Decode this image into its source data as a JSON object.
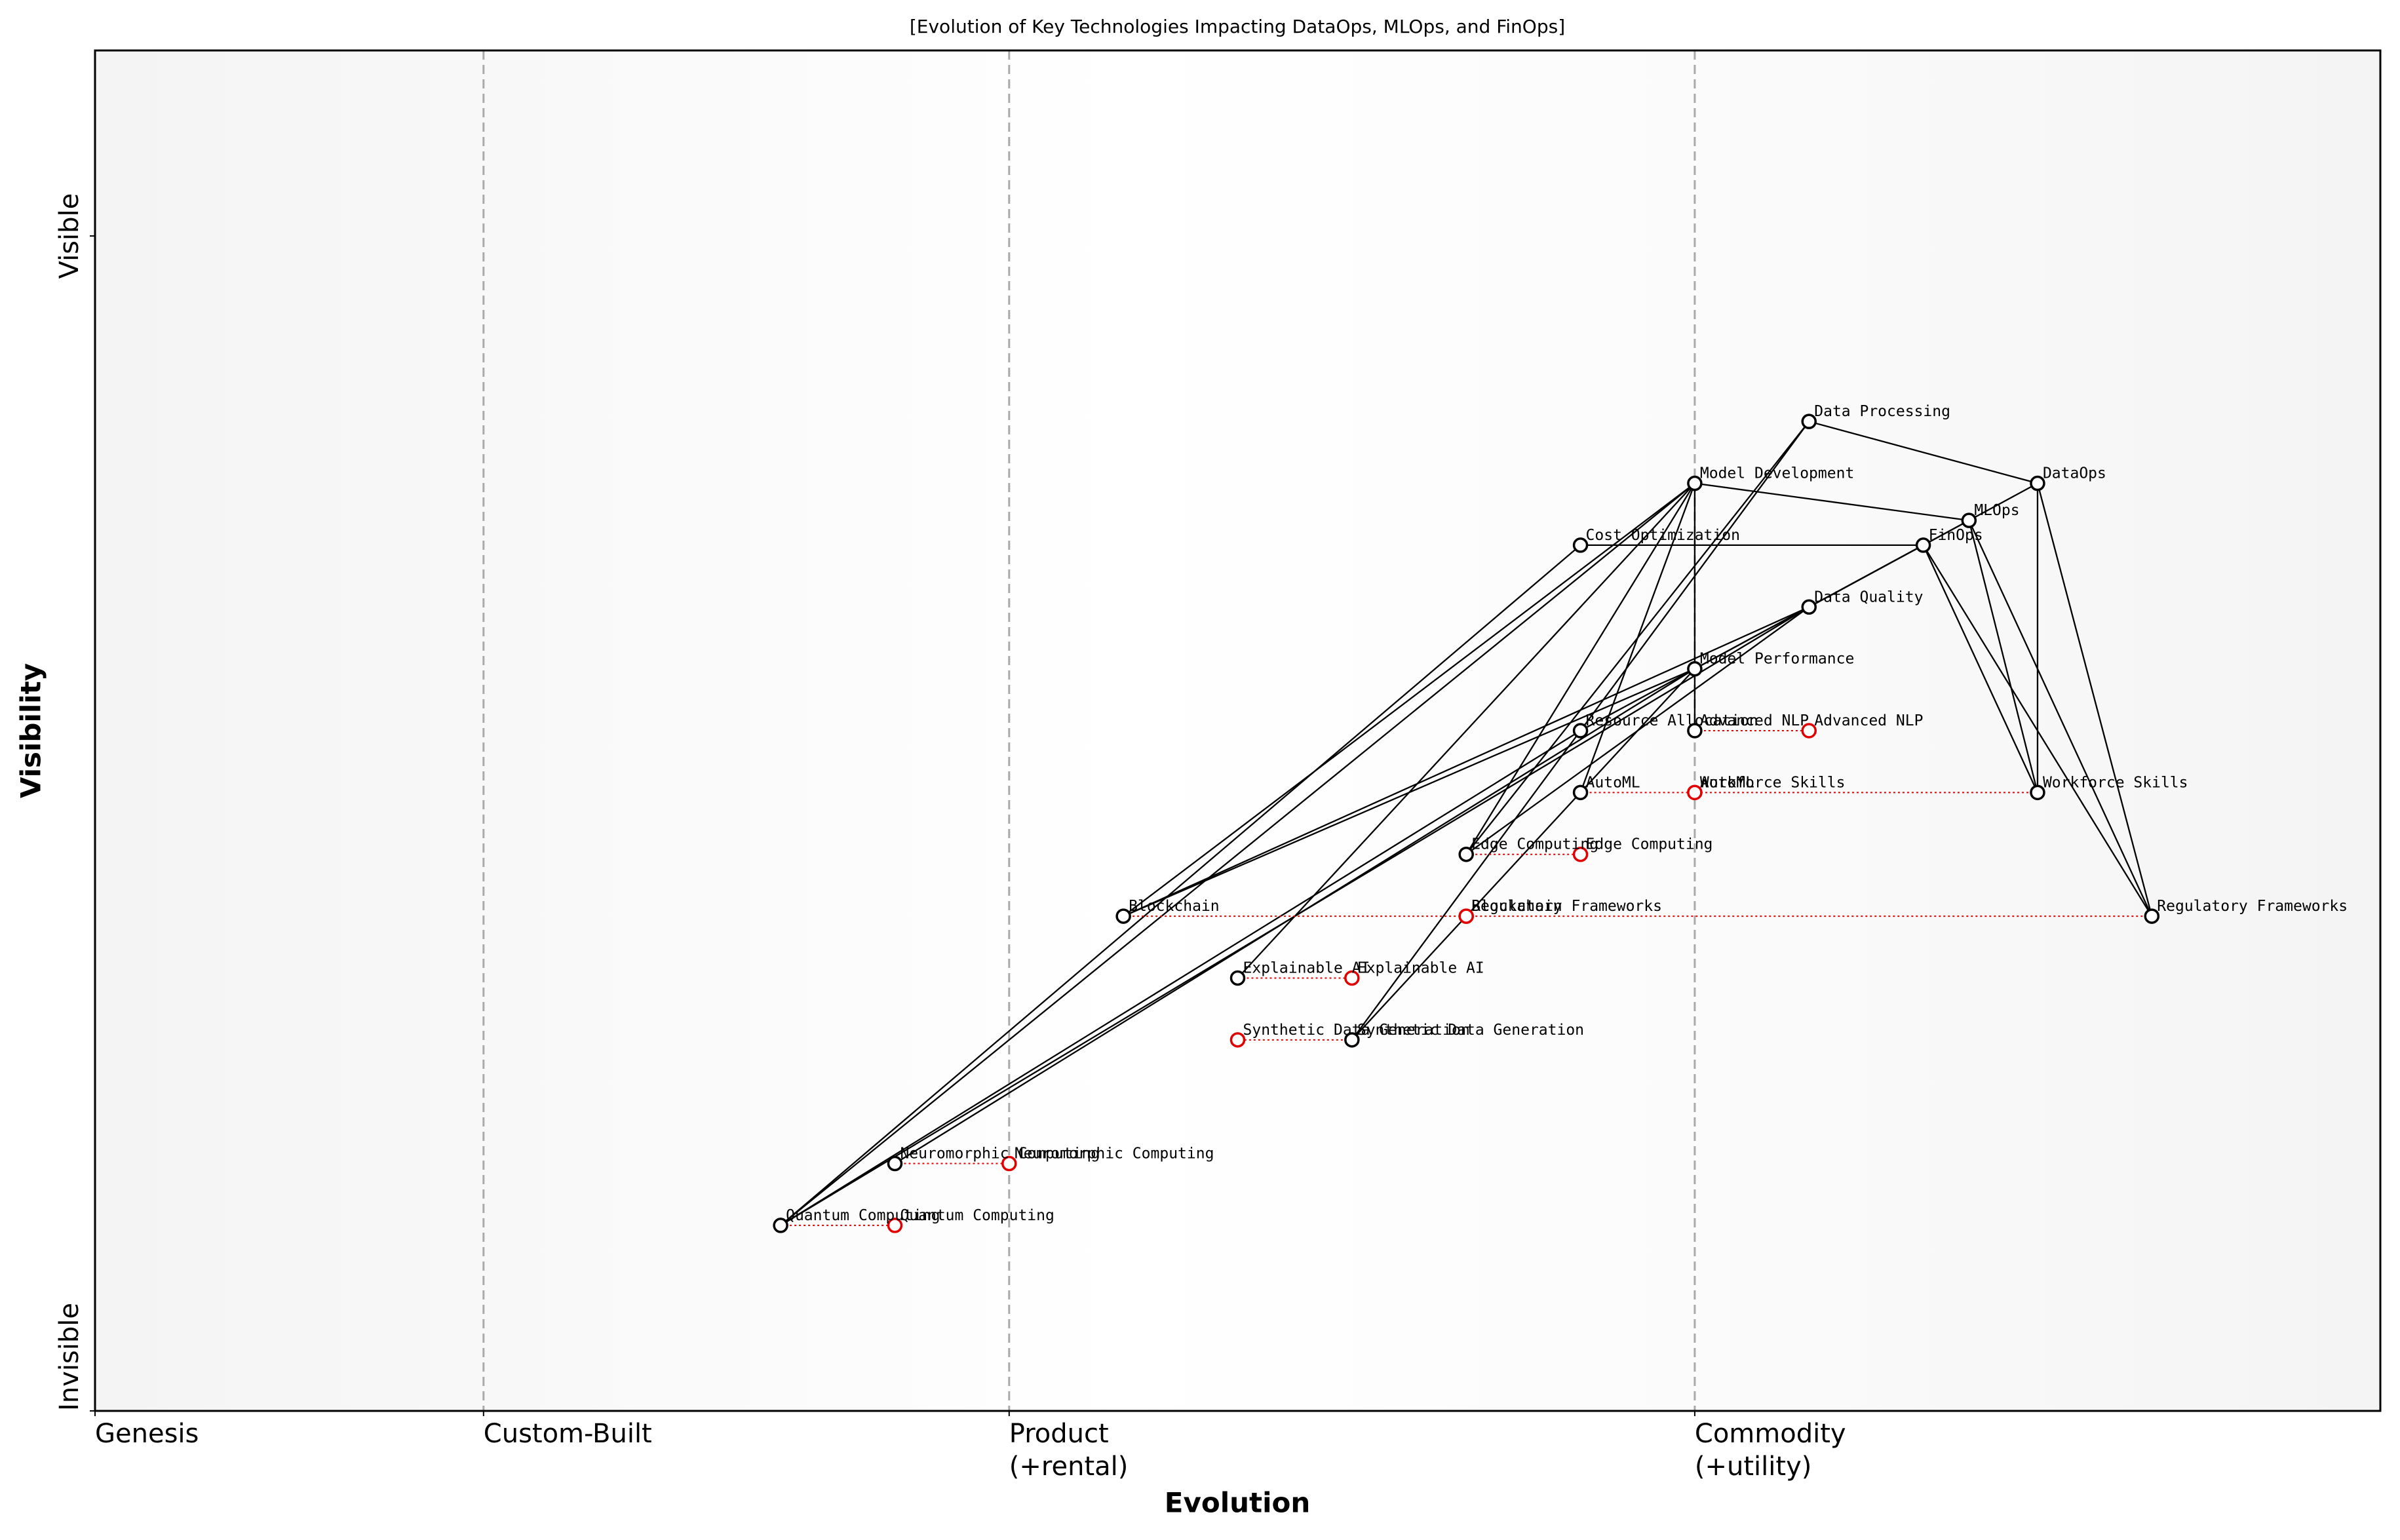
{
  "chart_data": {
    "type": "wardley",
    "title": "[Evolution of Key Technologies Impacting DataOps, MLOps, and FinOps]",
    "x_label": "Evolution",
    "y_label": "Visibility",
    "xlim": [
      0,
      1
    ],
    "ylim": [
      0,
      1.1
    ],
    "xticks": [
      {
        "value": 0,
        "label": "Genesis"
      },
      {
        "value": 0.17,
        "label": "Custom-Built"
      },
      {
        "value": 0.4,
        "label": "Product\n(+rental)"
      },
      {
        "value": 0.7,
        "label": "Commodity\n(+utility)"
      }
    ],
    "yticks": [
      {
        "value": 0,
        "label": "Invisible"
      },
      {
        "value": 0.95,
        "label": "Visible"
      }
    ],
    "grid": true,
    "color": "#000000",
    "evolve_color": "#e00000",
    "components": [
      {
        "name": "DataOps",
        "x": 0.85,
        "y": 0.75
      },
      {
        "name": "MLOps",
        "x": 0.82,
        "y": 0.72
      },
      {
        "name": "FinOps",
        "x": 0.8,
        "y": 0.7
      },
      {
        "name": "Data Processing",
        "x": 0.75,
        "y": 0.8
      },
      {
        "name": "Model Development",
        "x": 0.7,
        "y": 0.75
      },
      {
        "name": "Cost Optimization",
        "x": 0.65,
        "y": 0.7
      },
      {
        "name": "Data Quality",
        "x": 0.75,
        "y": 0.65
      },
      {
        "name": "Model Performance",
        "x": 0.7,
        "y": 0.6
      },
      {
        "name": "Resource Allocation",
        "x": 0.65,
        "y": 0.55
      },
      {
        "name": "Advanced NLP",
        "x": 0.7,
        "y": 0.55
      },
      {
        "name": "AutoML",
        "x": 0.65,
        "y": 0.5
      },
      {
        "name": "Workforce Skills",
        "x": 0.85,
        "y": 0.5
      },
      {
        "name": "Edge Computing",
        "x": 0.6,
        "y": 0.45
      },
      {
        "name": "Blockchain",
        "x": 0.45,
        "y": 0.4
      },
      {
        "name": "Regulatory Frameworks",
        "x": 0.9,
        "y": 0.4
      },
      {
        "name": "Explainable AI",
        "x": 0.5,
        "y": 0.35
      },
      {
        "name": "Synthetic Data Generation",
        "x": 0.55,
        "y": 0.3
      },
      {
        "name": "Neuromorphic Computing",
        "x": 0.35,
        "y": 0.2
      },
      {
        "name": "Quantum Computing",
        "x": 0.3,
        "y": 0.15
      }
    ],
    "evolutions": [
      {
        "name": "Advanced NLP",
        "x": 0.75
      },
      {
        "name": "AutoML",
        "x": 0.7
      },
      {
        "name": "Workforce Skills",
        "x": 0.7
      },
      {
        "name": "Edge Computing",
        "x": 0.65
      },
      {
        "name": "Blockchain",
        "x": 0.6
      },
      {
        "name": "Regulatory Frameworks",
        "x": 0.6
      },
      {
        "name": "Explainable AI",
        "x": 0.55
      },
      {
        "name": "Synthetic Data Generation",
        "x": 0.5
      },
      {
        "name": "Neuromorphic Computing",
        "x": 0.4
      },
      {
        "name": "Quantum Computing",
        "x": 0.35
      }
    ],
    "links": [
      [
        "DataOps",
        "Data Processing"
      ],
      [
        "DataOps",
        "Data Quality"
      ],
      [
        "DataOps",
        "Workforce Skills"
      ],
      [
        "DataOps",
        "Regulatory Frameworks"
      ],
      [
        "MLOps",
        "Model Development"
      ],
      [
        "MLOps",
        "Model Performance"
      ],
      [
        "MLOps",
        "Workforce Skills"
      ],
      [
        "MLOps",
        "Regulatory Frameworks"
      ],
      [
        "FinOps",
        "Cost Optimization"
      ],
      [
        "FinOps",
        "Resource Allocation"
      ],
      [
        "FinOps",
        "Workforce Skills"
      ],
      [
        "FinOps",
        "Regulatory Frameworks"
      ],
      [
        "Data Processing",
        "Edge Computing"
      ],
      [
        "Data Processing",
        "Synthetic Data Generation"
      ],
      [
        "Model Development",
        "AutoML"
      ],
      [
        "Model Development",
        "Advanced NLP"
      ],
      [
        "Model Development",
        "Explainable AI"
      ],
      [
        "Model Development",
        "Quantum Computing"
      ],
      [
        "Model Development",
        "Edge Computing"
      ],
      [
        "Model Development",
        "Blockchain"
      ],
      [
        "Cost Optimization",
        "Quantum Computing"
      ],
      [
        "Data Quality",
        "Blockchain"
      ],
      [
        "Data Quality",
        "Edge Computing"
      ],
      [
        "Data Quality",
        "Quantum Computing"
      ],
      [
        "Model Performance",
        "Blockchain"
      ],
      [
        "Model Performance",
        "Neuromorphic Computing"
      ],
      [
        "Model Performance",
        "Synthetic Data Generation"
      ],
      [
        "Resource Allocation",
        "Quantum Computing"
      ]
    ]
  }
}
